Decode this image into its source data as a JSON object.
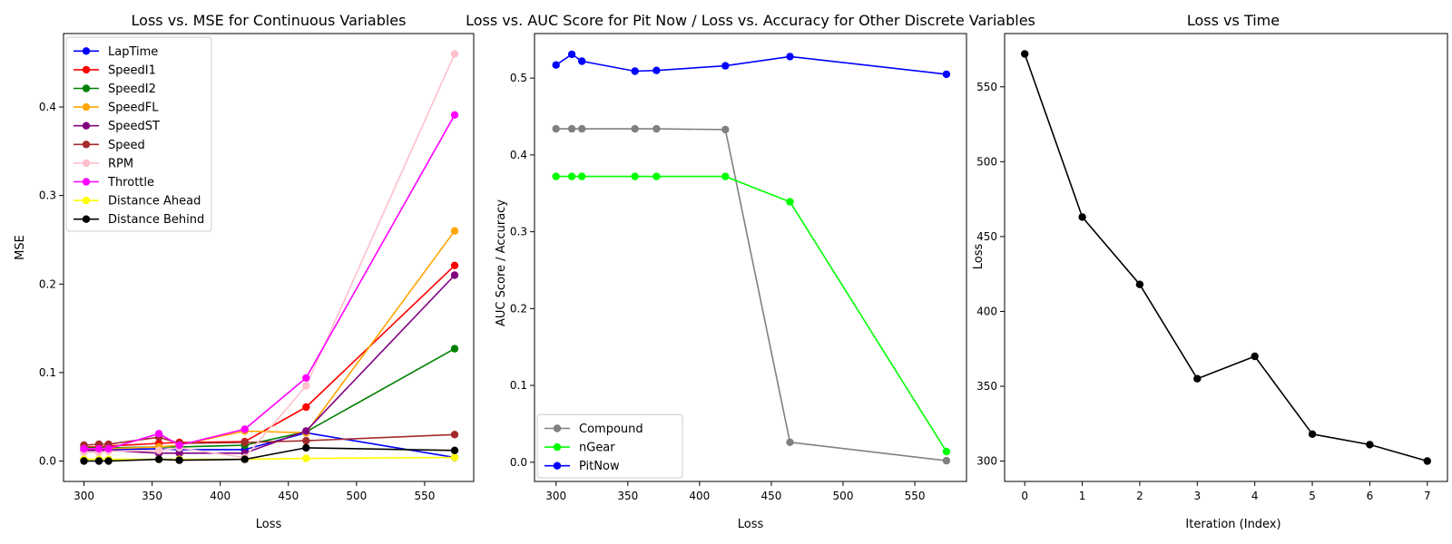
{
  "chart_data": [
    {
      "type": "line",
      "title": "Loss vs. MSE for Continuous Variables",
      "xlabel": "Loss",
      "ylabel": "MSE",
      "xlim": [
        285,
        586
      ],
      "ylim": [
        -0.023,
        0.483
      ],
      "xticks": [
        300,
        350,
        400,
        450,
        500,
        550
      ],
      "yticks": [
        0.0,
        0.1,
        0.2,
        0.3,
        0.4
      ],
      "ytick_labels": [
        "0.0",
        "0.1",
        "0.2",
        "0.3",
        "0.4"
      ],
      "grid": false,
      "legend": "upper-left",
      "x": [
        300,
        311,
        318,
        355,
        370,
        418,
        463,
        572
      ],
      "series": [
        {
          "name": "LapTime",
          "color": "#0000ff",
          "values": [
            0.013,
            0.013,
            0.013,
            0.014,
            0.013,
            0.013,
            0.032,
            0.004
          ]
        },
        {
          "name": "SpeedI1",
          "color": "#ff0000",
          "values": [
            0.016,
            0.016,
            0.017,
            0.02,
            0.021,
            0.022,
            0.061,
            0.221
          ]
        },
        {
          "name": "SpeedI2",
          "color": "#008000",
          "values": [
            0.015,
            0.015,
            0.015,
            0.016,
            0.016,
            0.018,
            0.033,
            0.127
          ]
        },
        {
          "name": "SpeedFL",
          "color": "#ffa500",
          "values": [
            0.014,
            0.014,
            0.014,
            0.016,
            0.018,
            0.034,
            0.032,
            0.26
          ]
        },
        {
          "name": "SpeedST",
          "color": "#800080",
          "values": [
            0.012,
            0.012,
            0.012,
            0.009,
            0.009,
            0.009,
            0.034,
            0.21
          ]
        },
        {
          "name": "Speed",
          "color": "#a52a2a",
          "values": [
            0.018,
            0.019,
            0.019,
            0.027,
            0.02,
            0.021,
            0.023,
            0.03
          ]
        },
        {
          "name": "RPM",
          "color": "#ffc0cb",
          "values": [
            0.01,
            0.01,
            0.011,
            0.012,
            0.015,
            0.004,
            0.085,
            0.46
          ]
        },
        {
          "name": "Throttle",
          "color": "#ff00ff",
          "values": [
            0.014,
            0.014,
            0.014,
            0.031,
            0.018,
            0.036,
            0.094,
            0.391
          ]
        },
        {
          "name": "Distance Ahead",
          "color": "#ffff00",
          "values": [
            0.002,
            0.002,
            0.002,
            0.002,
            0.002,
            0.002,
            0.003,
            0.004
          ]
        },
        {
          "name": "Distance Behind",
          "color": "#000000",
          "values": [
            0.0,
            0.0,
            0.0,
            0.002,
            0.001,
            0.002,
            0.015,
            0.012
          ]
        }
      ]
    },
    {
      "type": "line",
      "title": "Loss vs. AUC Score for Pit Now / Loss vs. Accuracy for Other Discrete Variables",
      "xlabel": "Loss",
      "ylabel": "AUC Score / Accuracy",
      "xlim": [
        285,
        586
      ],
      "ylim": [
        -0.025,
        0.558
      ],
      "xticks": [
        300,
        350,
        400,
        450,
        500,
        550
      ],
      "yticks": [
        0.0,
        0.1,
        0.2,
        0.3,
        0.4,
        0.5
      ],
      "ytick_labels": [
        "0.0",
        "0.1",
        "0.2",
        "0.3",
        "0.4",
        "0.5"
      ],
      "grid": false,
      "legend": "lower-left",
      "x": [
        300,
        311,
        318,
        355,
        370,
        418,
        463,
        572
      ],
      "series": [
        {
          "name": "Compound",
          "color": "#808080",
          "values": [
            0.434,
            0.434,
            0.434,
            0.434,
            0.434,
            0.433,
            0.026,
            0.002
          ]
        },
        {
          "name": "nGear",
          "color": "#00ff00",
          "values": [
            0.372,
            0.372,
            0.372,
            0.372,
            0.372,
            0.372,
            0.339,
            0.014
          ]
        },
        {
          "name": "PitNow",
          "color": "#0000ff",
          "values": [
            0.517,
            0.531,
            0.522,
            0.509,
            0.51,
            0.516,
            0.528,
            0.505
          ]
        }
      ]
    },
    {
      "type": "line",
      "title": "Loss vs Time",
      "xlabel": "Iteration (Index)",
      "ylabel": "Loss",
      "xlim": [
        -0.35,
        7.35
      ],
      "ylim": [
        286.4,
        585.6
      ],
      "xticks": [
        0,
        1,
        2,
        3,
        4,
        5,
        6,
        7
      ],
      "yticks": [
        300,
        350,
        400,
        450,
        500,
        550
      ],
      "ytick_labels": [
        "300",
        "350",
        "400",
        "450",
        "500",
        "550"
      ],
      "grid": false,
      "x": [
        0,
        1,
        2,
        3,
        4,
        5,
        6,
        7
      ],
      "series": [
        {
          "color": "#000000",
          "values": [
            572,
            463,
            418,
            355,
            370,
            318,
            311,
            300
          ]
        }
      ]
    }
  ]
}
